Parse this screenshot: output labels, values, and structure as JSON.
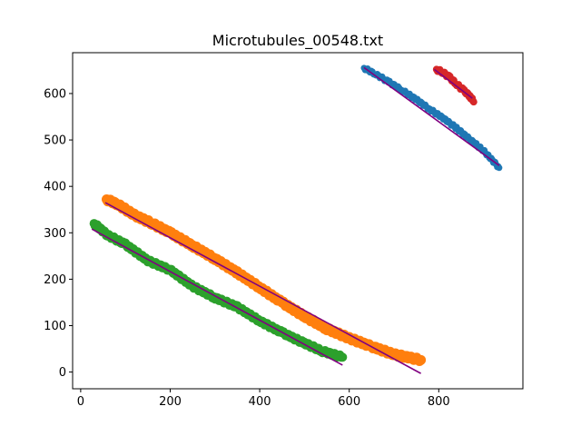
{
  "chart_data": {
    "type": "scatter",
    "title": "Microtubules_00548.txt",
    "xlabel": "",
    "ylabel": "",
    "xlim": [
      -18,
      988
    ],
    "ylim": [
      -36,
      688
    ],
    "xticks": [
      0,
      200,
      400,
      600,
      800
    ],
    "yticks": [
      0,
      100,
      200,
      300,
      400,
      500,
      600
    ],
    "grid": false,
    "legend": "none",
    "series": [
      {
        "color": "#1f77b4",
        "band": 5,
        "points": [
          [
            633,
            655
          ],
          [
            660,
            641
          ],
          [
            690,
            624
          ],
          [
            720,
            606
          ],
          [
            750,
            587
          ],
          [
            780,
            566
          ],
          [
            810,
            547
          ],
          [
            840,
            525
          ],
          [
            870,
            501
          ],
          [
            900,
            477
          ],
          [
            935,
            440
          ]
        ],
        "fit": [
          [
            633,
            656
          ],
          [
            935,
            445
          ]
        ]
      },
      {
        "color": "#ff7f0e",
        "band": 9,
        "points": [
          [
            58,
            372
          ],
          [
            85,
            360
          ],
          [
            120,
            338
          ],
          [
            160,
            320
          ],
          [
            200,
            300
          ],
          [
            250,
            272
          ],
          [
            300,
            244
          ],
          [
            350,
            214
          ],
          [
            400,
            182
          ],
          [
            450,
            150
          ],
          [
            500,
            120
          ],
          [
            550,
            93
          ],
          [
            600,
            73
          ],
          [
            650,
            55
          ],
          [
            700,
            38
          ],
          [
            760,
            26
          ]
        ],
        "fit": [
          [
            55,
            365
          ],
          [
            760,
            -3
          ]
        ]
      },
      {
        "color": "#2ca02c",
        "band": 8,
        "points": [
          [
            30,
            320
          ],
          [
            60,
            295
          ],
          [
            100,
            275
          ],
          [
            150,
            240
          ],
          [
            200,
            220
          ],
          [
            250,
            185
          ],
          [
            300,
            160
          ],
          [
            350,
            140
          ],
          [
            400,
            110
          ],
          [
            450,
            85
          ],
          [
            500,
            62
          ],
          [
            540,
            45
          ],
          [
            585,
            32
          ]
        ],
        "fit": [
          [
            25,
            308
          ],
          [
            585,
            15
          ]
        ]
      },
      {
        "color": "#d62728",
        "band": 6,
        "points": [
          [
            795,
            652
          ],
          [
            810,
            645
          ],
          [
            825,
            634
          ],
          [
            840,
            620
          ],
          [
            855,
            607
          ],
          [
            870,
            594
          ],
          [
            878,
            582
          ]
        ],
        "fit": [
          [
            790,
            652
          ],
          [
            875,
            590
          ]
        ]
      }
    ],
    "fit_color": "#800080"
  }
}
